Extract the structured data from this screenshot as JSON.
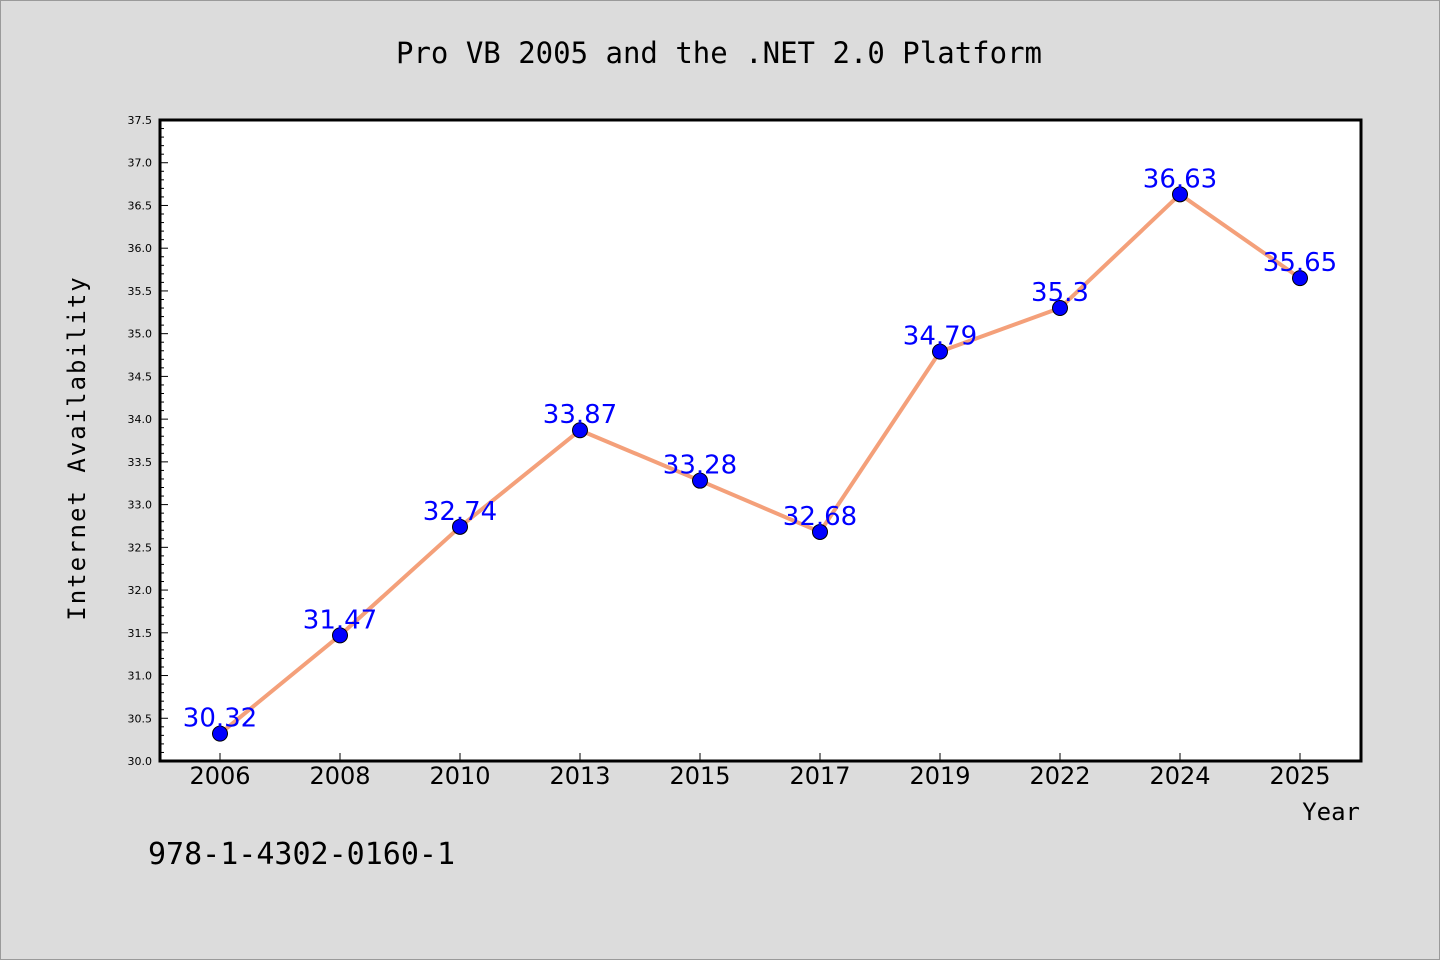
{
  "chart_data": {
    "type": "line",
    "title": "Pro VB 2005 and the .NET 2.0 Platform",
    "xlabel": "Year",
    "ylabel": "Internet Availability",
    "categories": [
      "2006",
      "2008",
      "2010",
      "2013",
      "2015",
      "2017",
      "2019",
      "2022",
      "2024",
      "2025"
    ],
    "values": [
      30.32,
      31.47,
      32.74,
      33.87,
      33.28,
      32.68,
      34.79,
      35.3,
      36.63,
      35.65
    ],
    "data_labels": [
      "30.32",
      "31.47",
      "32.74",
      "33.87",
      "33.28",
      "32.68",
      "34.79",
      "35.3",
      "36.63",
      "35.65"
    ],
    "ylim": [
      30.0,
      37.5
    ],
    "yticks": [
      "30.0",
      "30.5",
      "31.0",
      "31.5",
      "32.0",
      "32.5",
      "33.0",
      "33.5",
      "34.0",
      "34.5",
      "35.0",
      "35.5",
      "36.0",
      "36.5",
      "37.0",
      "37.5"
    ],
    "grid": false,
    "line_color": "#f4a07a",
    "marker_color": "#0000ff",
    "label_color": "#0000ff"
  },
  "footer": {
    "isbn": "978-1-4302-0160-1"
  }
}
